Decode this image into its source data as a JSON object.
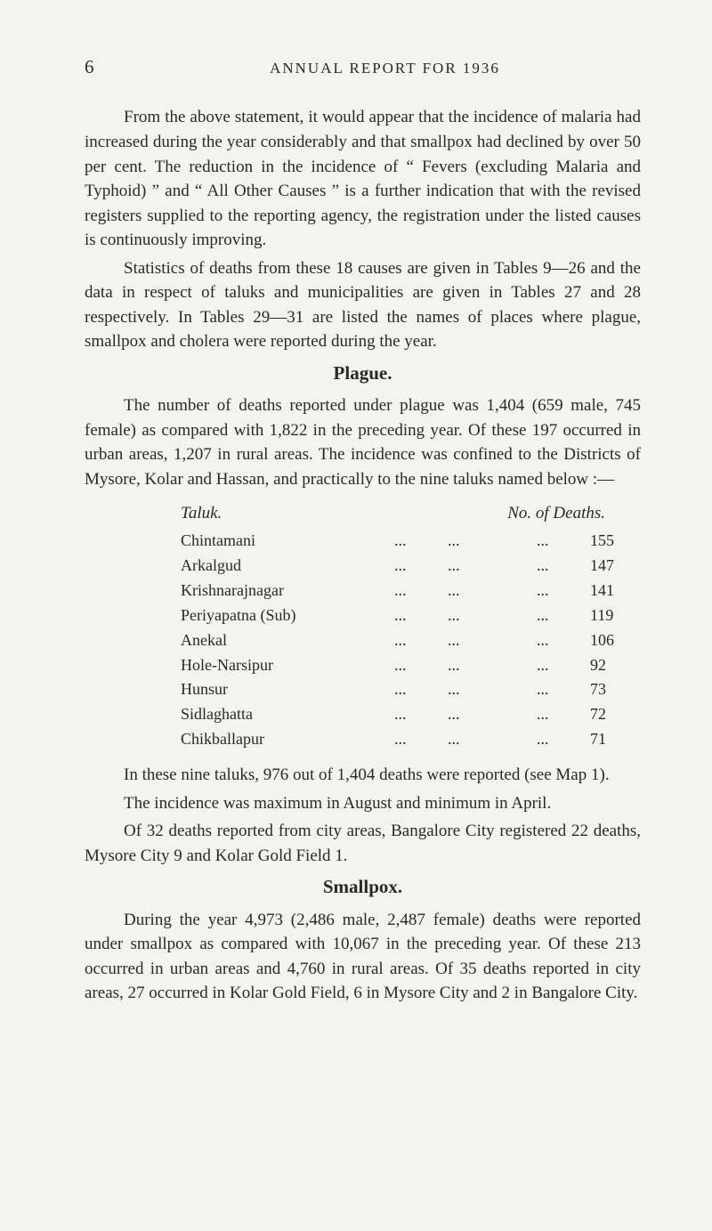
{
  "pageNumber": "6",
  "runningHead": "ANNUAL REPORT FOR 1936",
  "para1": "From the above statement, it would appear that the incidence of malaria had increased during the year considerably and that smallpox had declined by over 50 per cent. The reduction in the incidence of “ Fevers (excluding Malaria and Typhoid) ” and “ All Other Causes ” is a further indication that with the revised registers supplied to the reporting agency, the registration under the listed causes is continuously improving.",
  "para2": "Statistics of deaths from these 18 causes are given in Tables 9—26 and the data in respect of taluks and municipalities are given in Tables 27 and 28 respectively. In Tables 29—31 are listed the names of places where plague, smallpox and cholera were reported during the year.",
  "plagueHead": "Plague.",
  "para3": "The number of deaths reported under plague was 1,404 (659 male, 745 female) as compared with 1,822 in the preceding year. Of these 197 occurred in urban areas, 1,207 in rural areas. The incidence was confined to the Districts of Mysore, Kolar and Hassan, and practically to the nine taluks named below :—",
  "tableHead": {
    "taluk": "Taluk.",
    "deaths": "No. of Deaths."
  },
  "rows": [
    {
      "name": "Chintamani",
      "val": "155"
    },
    {
      "name": "Arkalgud",
      "val": "147"
    },
    {
      "name": "Krishnarajnagar",
      "val": "141"
    },
    {
      "name": "Periyapatna (Sub)",
      "val": "119"
    },
    {
      "name": "Anekal",
      "val": "106"
    },
    {
      "name": "Hole-Narsipur",
      "val": "92"
    },
    {
      "name": "Hunsur",
      "val": "73"
    },
    {
      "name": "Sidlaghatta",
      "val": "72"
    },
    {
      "name": "Chikballapur",
      "val": "71"
    }
  ],
  "para4": "In these nine taluks, 976 out of 1,404 deaths were reported (see Map 1).",
  "para5": "The incidence was maximum in August and minimum in April.",
  "para6": "Of 32 deaths reported from city areas, Bangalore City registered 22 deaths, Mysore City 9 and Kolar Gold Field 1.",
  "smallpoxHead": "Smallpox.",
  "para7": "During the year 4,973 (2,486 male, 2,487 female) deaths were reported under smallpox as compared with 10,067 in the preceding year. Of these 213 occurred in urban areas and 4,760 in rural areas. Of 35 deaths reported in city areas, 27 occurred in Kolar Gold Field, 6 in Mysore City and 2 in Bangalore City."
}
